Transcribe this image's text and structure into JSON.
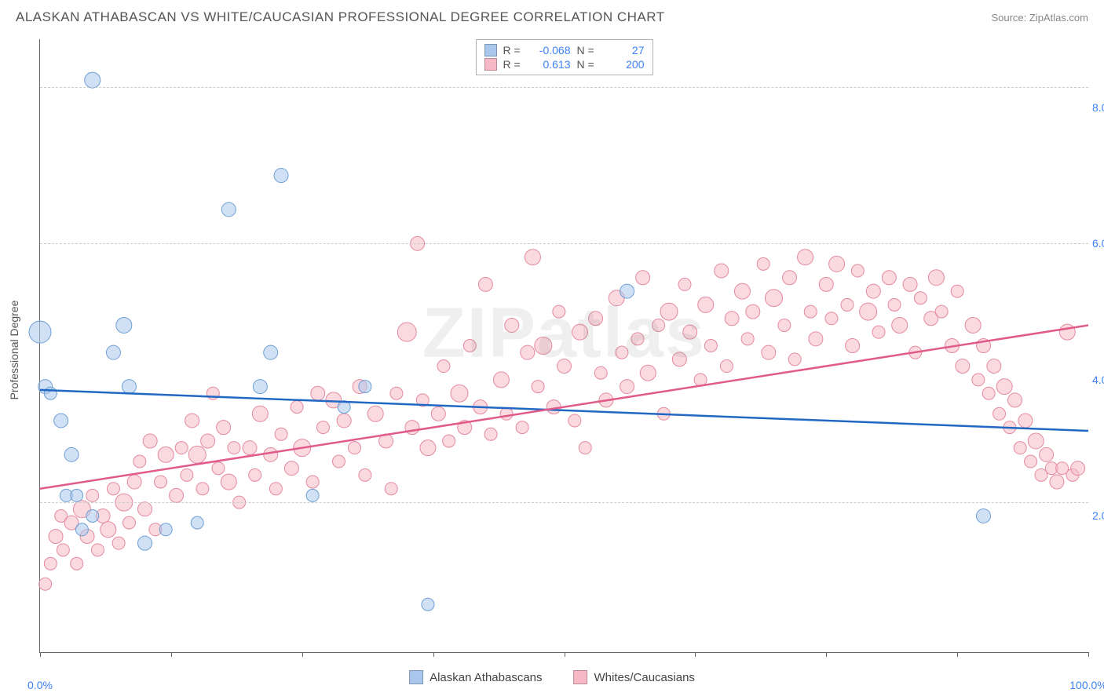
{
  "header": {
    "title": "ALASKAN ATHABASCAN VS WHITE/CAUCASIAN PROFESSIONAL DEGREE CORRELATION CHART",
    "source_label": "Source: ",
    "source_name": "ZipAtlas.com"
  },
  "watermark": "ZIPatlas",
  "y_axis": {
    "label": "Professional Degree"
  },
  "chart": {
    "type": "scatter",
    "xlim": [
      0,
      100
    ],
    "ylim": [
      0,
      9
    ],
    "background_color": "#ffffff",
    "grid_color": "#cccccc",
    "gridlines_y": [
      2.2,
      6.0,
      8.3
    ],
    "y_ticks": [
      {
        "value": 2.0,
        "label": "2.0%"
      },
      {
        "value": 4.0,
        "label": "4.0%"
      },
      {
        "value": 6.0,
        "label": "6.0%"
      },
      {
        "value": 8.0,
        "label": "8.0%"
      }
    ],
    "x_ticks_major": [
      0,
      100
    ],
    "x_tick_labels": [
      {
        "value": 0,
        "label": "0.0%"
      },
      {
        "value": 100,
        "label": "100.0%"
      }
    ],
    "x_ticks_minor": [
      12.5,
      25,
      37.5,
      50,
      62.5,
      75,
      87.5
    ],
    "series": [
      {
        "id": "athabascan",
        "label": "Alaskan Athabascans",
        "fill_color": "#a9c7ec",
        "stroke_color": "#6e9fd4",
        "fill_opacity": 0.55,
        "line_color": "#2168c4",
        "line_width": 2.5,
        "R": "-0.068",
        "N": "27",
        "trend": {
          "x1": 0,
          "y1": 3.85,
          "x2": 100,
          "y2": 3.25
        },
        "points": [
          {
            "x": 5,
            "y": 8.4,
            "r": 10
          },
          {
            "x": 0,
            "y": 4.7,
            "r": 14
          },
          {
            "x": 0.5,
            "y": 3.9,
            "r": 9
          },
          {
            "x": 1,
            "y": 3.8,
            "r": 8
          },
          {
            "x": 2,
            "y": 3.4,
            "r": 9
          },
          {
            "x": 3,
            "y": 2.9,
            "r": 9
          },
          {
            "x": 2.5,
            "y": 2.3,
            "r": 8
          },
          {
            "x": 3.5,
            "y": 2.3,
            "r": 8
          },
          {
            "x": 4,
            "y": 1.8,
            "r": 8
          },
          {
            "x": 5,
            "y": 2.0,
            "r": 8
          },
          {
            "x": 7,
            "y": 4.4,
            "r": 9
          },
          {
            "x": 8,
            "y": 4.8,
            "r": 10
          },
          {
            "x": 8.5,
            "y": 3.9,
            "r": 9
          },
          {
            "x": 10,
            "y": 1.6,
            "r": 9
          },
          {
            "x": 12,
            "y": 1.8,
            "r": 8
          },
          {
            "x": 15,
            "y": 1.9,
            "r": 8
          },
          {
            "x": 18,
            "y": 6.5,
            "r": 9
          },
          {
            "x": 21,
            "y": 3.9,
            "r": 9
          },
          {
            "x": 22,
            "y": 4.4,
            "r": 9
          },
          {
            "x": 23,
            "y": 7.0,
            "r": 9
          },
          {
            "x": 26,
            "y": 2.3,
            "r": 8
          },
          {
            "x": 29,
            "y": 3.6,
            "r": 8
          },
          {
            "x": 31,
            "y": 3.9,
            "r": 8
          },
          {
            "x": 37,
            "y": 0.7,
            "r": 8
          },
          {
            "x": 56,
            "y": 5.3,
            "r": 9
          },
          {
            "x": 90,
            "y": 2.0,
            "r": 9
          }
        ]
      },
      {
        "id": "white",
        "label": "Whites/Caucasians",
        "fill_color": "#f6b9c5",
        "stroke_color": "#e48aa0",
        "fill_opacity": 0.55,
        "line_color": "#e05a8a",
        "line_width": 2.5,
        "R": "0.613",
        "N": "200",
        "trend": {
          "x1": 0,
          "y1": 2.4,
          "x2": 100,
          "y2": 4.8
        },
        "points": [
          {
            "x": 0.5,
            "y": 1.0,
            "r": 8
          },
          {
            "x": 1,
            "y": 1.3,
            "r": 8
          },
          {
            "x": 1.5,
            "y": 1.7,
            "r": 9
          },
          {
            "x": 2,
            "y": 2.0,
            "r": 8
          },
          {
            "x": 2.2,
            "y": 1.5,
            "r": 8
          },
          {
            "x": 3,
            "y": 1.9,
            "r": 9
          },
          {
            "x": 3.5,
            "y": 1.3,
            "r": 8
          },
          {
            "x": 4,
            "y": 2.1,
            "r": 11
          },
          {
            "x": 4.5,
            "y": 1.7,
            "r": 9
          },
          {
            "x": 5,
            "y": 2.3,
            "r": 8
          },
          {
            "x": 5.5,
            "y": 1.5,
            "r": 8
          },
          {
            "x": 6,
            "y": 2.0,
            "r": 9
          },
          {
            "x": 6.5,
            "y": 1.8,
            "r": 10
          },
          {
            "x": 7,
            "y": 2.4,
            "r": 8
          },
          {
            "x": 7.5,
            "y": 1.6,
            "r": 8
          },
          {
            "x": 8,
            "y": 2.2,
            "r": 11
          },
          {
            "x": 8.5,
            "y": 1.9,
            "r": 8
          },
          {
            "x": 9,
            "y": 2.5,
            "r": 9
          },
          {
            "x": 9.5,
            "y": 2.8,
            "r": 8
          },
          {
            "x": 10,
            "y": 2.1,
            "r": 9
          },
          {
            "x": 10.5,
            "y": 3.1,
            "r": 9
          },
          {
            "x": 11,
            "y": 1.8,
            "r": 8
          },
          {
            "x": 11.5,
            "y": 2.5,
            "r": 8
          },
          {
            "x": 12,
            "y": 2.9,
            "r": 10
          },
          {
            "x": 13,
            "y": 2.3,
            "r": 9
          },
          {
            "x": 13.5,
            "y": 3.0,
            "r": 8
          },
          {
            "x": 14,
            "y": 2.6,
            "r": 8
          },
          {
            "x": 14.5,
            "y": 3.4,
            "r": 9
          },
          {
            "x": 15,
            "y": 2.9,
            "r": 11
          },
          {
            "x": 15.5,
            "y": 2.4,
            "r": 8
          },
          {
            "x": 16,
            "y": 3.1,
            "r": 9
          },
          {
            "x": 16.5,
            "y": 3.8,
            "r": 8
          },
          {
            "x": 17,
            "y": 2.7,
            "r": 8
          },
          {
            "x": 17.5,
            "y": 3.3,
            "r": 9
          },
          {
            "x": 18,
            "y": 2.5,
            "r": 10
          },
          {
            "x": 18.5,
            "y": 3.0,
            "r": 8
          },
          {
            "x": 19,
            "y": 2.2,
            "r": 8
          },
          {
            "x": 20,
            "y": 3.0,
            "r": 9
          },
          {
            "x": 20.5,
            "y": 2.6,
            "r": 8
          },
          {
            "x": 21,
            "y": 3.5,
            "r": 10
          },
          {
            "x": 22,
            "y": 2.9,
            "r": 9
          },
          {
            "x": 22.5,
            "y": 2.4,
            "r": 8
          },
          {
            "x": 23,
            "y": 3.2,
            "r": 8
          },
          {
            "x": 24,
            "y": 2.7,
            "r": 9
          },
          {
            "x": 24.5,
            "y": 3.6,
            "r": 8
          },
          {
            "x": 25,
            "y": 3.0,
            "r": 11
          },
          {
            "x": 26,
            "y": 2.5,
            "r": 8
          },
          {
            "x": 26.5,
            "y": 3.8,
            "r": 9
          },
          {
            "x": 27,
            "y": 3.3,
            "r": 8
          },
          {
            "x": 28,
            "y": 3.7,
            "r": 10
          },
          {
            "x": 28.5,
            "y": 2.8,
            "r": 8
          },
          {
            "x": 29,
            "y": 3.4,
            "r": 9
          },
          {
            "x": 30,
            "y": 3.0,
            "r": 8
          },
          {
            "x": 30.5,
            "y": 3.9,
            "r": 9
          },
          {
            "x": 31,
            "y": 2.6,
            "r": 8
          },
          {
            "x": 32,
            "y": 3.5,
            "r": 10
          },
          {
            "x": 33,
            "y": 3.1,
            "r": 9
          },
          {
            "x": 33.5,
            "y": 2.4,
            "r": 8
          },
          {
            "x": 34,
            "y": 3.8,
            "r": 8
          },
          {
            "x": 35,
            "y": 4.7,
            "r": 12
          },
          {
            "x": 35.5,
            "y": 3.3,
            "r": 9
          },
          {
            "x": 36,
            "y": 6.0,
            "r": 9
          },
          {
            "x": 36.5,
            "y": 3.7,
            "r": 8
          },
          {
            "x": 37,
            "y": 3.0,
            "r": 10
          },
          {
            "x": 38,
            "y": 3.5,
            "r": 9
          },
          {
            "x": 38.5,
            "y": 4.2,
            "r": 8
          },
          {
            "x": 39,
            "y": 3.1,
            "r": 8
          },
          {
            "x": 40,
            "y": 3.8,
            "r": 11
          },
          {
            "x": 40.5,
            "y": 3.3,
            "r": 9
          },
          {
            "x": 41,
            "y": 4.5,
            "r": 8
          },
          {
            "x": 42,
            "y": 3.6,
            "r": 9
          },
          {
            "x": 42.5,
            "y": 5.4,
            "r": 9
          },
          {
            "x": 43,
            "y": 3.2,
            "r": 8
          },
          {
            "x": 44,
            "y": 4.0,
            "r": 10
          },
          {
            "x": 44.5,
            "y": 3.5,
            "r": 8
          },
          {
            "x": 45,
            "y": 4.8,
            "r": 9
          },
          {
            "x": 46,
            "y": 3.3,
            "r": 8
          },
          {
            "x": 46.5,
            "y": 4.4,
            "r": 9
          },
          {
            "x": 47,
            "y": 5.8,
            "r": 10
          },
          {
            "x": 47.5,
            "y": 3.9,
            "r": 8
          },
          {
            "x": 48,
            "y": 4.5,
            "r": 11
          },
          {
            "x": 49,
            "y": 3.6,
            "r": 9
          },
          {
            "x": 49.5,
            "y": 5.0,
            "r": 8
          },
          {
            "x": 50,
            "y": 4.2,
            "r": 9
          },
          {
            "x": 51,
            "y": 3.4,
            "r": 8
          },
          {
            "x": 51.5,
            "y": 4.7,
            "r": 10
          },
          {
            "x": 52,
            "y": 3.0,
            "r": 8
          },
          {
            "x": 53,
            "y": 4.9,
            "r": 9
          },
          {
            "x": 53.5,
            "y": 4.1,
            "r": 8
          },
          {
            "x": 54,
            "y": 3.7,
            "r": 9
          },
          {
            "x": 55,
            "y": 5.2,
            "r": 10
          },
          {
            "x": 55.5,
            "y": 4.4,
            "r": 8
          },
          {
            "x": 56,
            "y": 3.9,
            "r": 9
          },
          {
            "x": 57,
            "y": 4.6,
            "r": 8
          },
          {
            "x": 57.5,
            "y": 5.5,
            "r": 9
          },
          {
            "x": 58,
            "y": 4.1,
            "r": 10
          },
          {
            "x": 59,
            "y": 4.8,
            "r": 8
          },
          {
            "x": 59.5,
            "y": 3.5,
            "r": 8
          },
          {
            "x": 60,
            "y": 5.0,
            "r": 11
          },
          {
            "x": 61,
            "y": 4.3,
            "r": 9
          },
          {
            "x": 61.5,
            "y": 5.4,
            "r": 8
          },
          {
            "x": 62,
            "y": 4.7,
            "r": 9
          },
          {
            "x": 63,
            "y": 4.0,
            "r": 8
          },
          {
            "x": 63.5,
            "y": 5.1,
            "r": 10
          },
          {
            "x": 64,
            "y": 4.5,
            "r": 8
          },
          {
            "x": 65,
            "y": 5.6,
            "r": 9
          },
          {
            "x": 65.5,
            "y": 4.2,
            "r": 8
          },
          {
            "x": 66,
            "y": 4.9,
            "r": 9
          },
          {
            "x": 67,
            "y": 5.3,
            "r": 10
          },
          {
            "x": 67.5,
            "y": 4.6,
            "r": 8
          },
          {
            "x": 68,
            "y": 5.0,
            "r": 9
          },
          {
            "x": 69,
            "y": 5.7,
            "r": 8
          },
          {
            "x": 69.5,
            "y": 4.4,
            "r": 9
          },
          {
            "x": 70,
            "y": 5.2,
            "r": 11
          },
          {
            "x": 71,
            "y": 4.8,
            "r": 8
          },
          {
            "x": 71.5,
            "y": 5.5,
            "r": 9
          },
          {
            "x": 72,
            "y": 4.3,
            "r": 8
          },
          {
            "x": 73,
            "y": 5.8,
            "r": 10
          },
          {
            "x": 73.5,
            "y": 5.0,
            "r": 8
          },
          {
            "x": 74,
            "y": 4.6,
            "r": 9
          },
          {
            "x": 75,
            "y": 5.4,
            "r": 9
          },
          {
            "x": 75.5,
            "y": 4.9,
            "r": 8
          },
          {
            "x": 76,
            "y": 5.7,
            "r": 10
          },
          {
            "x": 77,
            "y": 5.1,
            "r": 8
          },
          {
            "x": 77.5,
            "y": 4.5,
            "r": 9
          },
          {
            "x": 78,
            "y": 5.6,
            "r": 8
          },
          {
            "x": 79,
            "y": 5.0,
            "r": 11
          },
          {
            "x": 79.5,
            "y": 5.3,
            "r": 9
          },
          {
            "x": 80,
            "y": 4.7,
            "r": 8
          },
          {
            "x": 81,
            "y": 5.5,
            "r": 9
          },
          {
            "x": 81.5,
            "y": 5.1,
            "r": 8
          },
          {
            "x": 82,
            "y": 4.8,
            "r": 10
          },
          {
            "x": 83,
            "y": 5.4,
            "r": 9
          },
          {
            "x": 83.5,
            "y": 4.4,
            "r": 8
          },
          {
            "x": 84,
            "y": 5.2,
            "r": 8
          },
          {
            "x": 85,
            "y": 4.9,
            "r": 9
          },
          {
            "x": 85.5,
            "y": 5.5,
            "r": 10
          },
          {
            "x": 86,
            "y": 5.0,
            "r": 8
          },
          {
            "x": 87,
            "y": 4.5,
            "r": 9
          },
          {
            "x": 87.5,
            "y": 5.3,
            "r": 8
          },
          {
            "x": 88,
            "y": 4.2,
            "r": 9
          },
          {
            "x": 89,
            "y": 4.8,
            "r": 10
          },
          {
            "x": 89.5,
            "y": 4.0,
            "r": 8
          },
          {
            "x": 90,
            "y": 4.5,
            "r": 9
          },
          {
            "x": 90.5,
            "y": 3.8,
            "r": 8
          },
          {
            "x": 91,
            "y": 4.2,
            "r": 9
          },
          {
            "x": 91.5,
            "y": 3.5,
            "r": 8
          },
          {
            "x": 92,
            "y": 3.9,
            "r": 10
          },
          {
            "x": 92.5,
            "y": 3.3,
            "r": 8
          },
          {
            "x": 93,
            "y": 3.7,
            "r": 9
          },
          {
            "x": 93.5,
            "y": 3.0,
            "r": 8
          },
          {
            "x": 94,
            "y": 3.4,
            "r": 9
          },
          {
            "x": 94.5,
            "y": 2.8,
            "r": 8
          },
          {
            "x": 95,
            "y": 3.1,
            "r": 10
          },
          {
            "x": 95.5,
            "y": 2.6,
            "r": 8
          },
          {
            "x": 96,
            "y": 2.9,
            "r": 9
          },
          {
            "x": 96.5,
            "y": 2.7,
            "r": 8
          },
          {
            "x": 97,
            "y": 2.5,
            "r": 9
          },
          {
            "x": 97.5,
            "y": 2.7,
            "r": 8
          },
          {
            "x": 98,
            "y": 4.7,
            "r": 10
          },
          {
            "x": 98.5,
            "y": 2.6,
            "r": 8
          },
          {
            "x": 99,
            "y": 2.7,
            "r": 9
          }
        ]
      }
    ]
  },
  "legend_top": {
    "rows": [
      {
        "swatch": "#a9c7ec",
        "R_label": "R =",
        "R": "-0.068",
        "N_label": "N =",
        "N": "27"
      },
      {
        "swatch": "#f6b9c5",
        "R_label": "R =",
        "R": "0.613",
        "N_label": "N =",
        "N": "200"
      }
    ]
  },
  "legend_bottom": {
    "items": [
      {
        "swatch": "#a9c7ec",
        "label": "Alaskan Athabascans"
      },
      {
        "swatch": "#f6b9c5",
        "label": "Whites/Caucasians"
      }
    ]
  }
}
